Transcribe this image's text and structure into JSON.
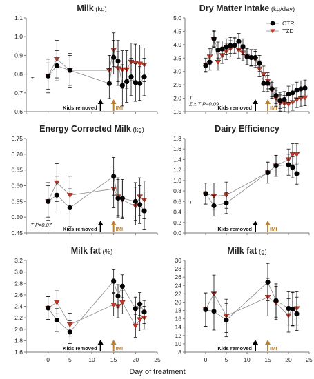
{
  "figure": {
    "xlabel": "Day of treatment",
    "colors": {
      "ctr": "#000000",
      "tzd": "#c0392b",
      "kids_arrow": "#000000",
      "imi_arrow": "#b5833a",
      "imi_text": "#b5833a"
    }
  },
  "chart_data": [
    {
      "type": "line",
      "title": "Milk",
      "unit": "(kg)",
      "xlim": [
        -5,
        25
      ],
      "ylim": [
        0.6,
        1.1
      ],
      "yticks": [
        "0.6",
        "0.7",
        "0.8",
        "0.9",
        "1.0",
        "1.1"
      ],
      "xticks": [],
      "annotations": [
        {
          "text": "T",
          "x": -4,
          "y": 0.765
        }
      ],
      "markers": {
        "kids_label": "Kids removed",
        "kids_x": 12,
        "imi_label": "IMI",
        "imi_x": 15
      },
      "series": [
        {
          "key": "ctr",
          "x": [
            0,
            2,
            5,
            14,
            15,
            16,
            17,
            18,
            19,
            20,
            21,
            22
          ],
          "y": [
            0.79,
            0.845,
            0.82,
            0.75,
            0.89,
            0.87,
            0.74,
            0.76,
            0.785,
            0.755,
            0.75,
            0.785
          ],
          "err": [
            0.09,
            0.08,
            0.09,
            0.08,
            0.09,
            0.11,
            0.11,
            0.11,
            0.1,
            0.1,
            0.09,
            0.1
          ]
        },
        {
          "key": "tzd",
          "x": [
            0,
            2,
            5,
            14,
            15,
            16,
            17,
            18,
            19,
            20,
            21,
            22
          ],
          "y": [
            0.79,
            0.88,
            0.82,
            0.82,
            0.93,
            0.83,
            0.825,
            0.825,
            0.865,
            0.86,
            0.855,
            0.85
          ],
          "err": [
            0.07,
            0.1,
            0.08,
            0.08,
            0.09,
            0.09,
            0.1,
            0.1,
            0.1,
            0.1,
            0.1,
            0.09
          ]
        }
      ]
    },
    {
      "type": "line",
      "title": "Dry Matter Intake",
      "unit": "(kg/day)",
      "xlim": [
        -5,
        25
      ],
      "ylim": [
        1.5,
        5.0
      ],
      "yticks": [
        "1.5",
        "2.0",
        "2.5",
        "3.0",
        "3.5",
        "4.0",
        "4.5",
        "5.0"
      ],
      "xticks": [],
      "annotations": [
        {
          "text": "T",
          "x": -4,
          "y": 1.95
        },
        {
          "text": "Z x T P=0.09",
          "x": -4,
          "y": 1.72
        }
      ],
      "legend": {
        "position": "top-right",
        "entries": [
          {
            "key": "ctr",
            "label": "CTR"
          },
          {
            "key": "tzd",
            "label": "TZD"
          }
        ]
      },
      "markers": {
        "kids_label": "Kids removed",
        "kids_x": 12,
        "imi_label": "IMI",
        "imi_x": 15
      },
      "series": [
        {
          "key": "ctr",
          "x": [
            0,
            1,
            2,
            3,
            4,
            5,
            6,
            7,
            8,
            9,
            10,
            11,
            12,
            13,
            14,
            15,
            16,
            17,
            18,
            19,
            20,
            21,
            22,
            23,
            24
          ],
          "y": [
            3.22,
            3.35,
            4.22,
            3.8,
            3.84,
            3.92,
            3.97,
            3.98,
            4.12,
            3.92,
            3.55,
            3.52,
            3.52,
            3.3,
            2.55,
            2.55,
            2.35,
            2.1,
            1.92,
            1.95,
            2.15,
            2.2,
            2.3,
            2.35,
            2.38
          ],
          "err": [
            0.25,
            0.3,
            0.3,
            0.3,
            0.3,
            0.3,
            0.3,
            0.3,
            0.3,
            0.3,
            0.3,
            0.3,
            0.3,
            0.3,
            0.3,
            0.3,
            0.3,
            0.3,
            0.3,
            0.3,
            0.3,
            0.3,
            0.3,
            0.3,
            0.3
          ]
        },
        {
          "key": "tzd",
          "x": [
            0,
            1,
            2,
            3,
            4,
            5,
            6,
            7,
            8,
            9,
            10,
            11,
            12,
            13,
            14,
            15,
            16,
            17,
            18,
            19,
            20,
            21,
            22,
            23,
            24
          ],
          "y": [
            3.25,
            3.55,
            4.2,
            3.35,
            3.6,
            3.75,
            3.85,
            3.95,
            3.8,
            3.7,
            3.55,
            3.5,
            3.45,
            3.1,
            2.9,
            2.65,
            2.3,
            2.0,
            1.82,
            1.8,
            1.78,
            1.85,
            1.95,
            2.0,
            2.02
          ],
          "err": [
            0.25,
            0.3,
            0.3,
            0.3,
            0.3,
            0.3,
            0.3,
            0.3,
            0.3,
            0.3,
            0.3,
            0.3,
            0.3,
            0.3,
            0.3,
            0.3,
            0.3,
            0.3,
            0.3,
            0.3,
            0.3,
            0.3,
            0.3,
            0.3,
            0.3
          ]
        }
      ]
    },
    {
      "type": "line",
      "title": "Energy Corrected Milk",
      "unit": "(kg)",
      "xlim": [
        -5,
        25
      ],
      "ylim": [
        0.45,
        0.75
      ],
      "yticks": [
        "0.45",
        "0.50",
        "0.55",
        "0.60",
        "0.65",
        "0.70",
        "0.75"
      ],
      "xticks": [],
      "annotations": [
        {
          "text": "T P=0.07",
          "x": -4,
          "y": 0.47
        }
      ],
      "markers": {
        "kids_label": "Kids removed",
        "kids_x": 12,
        "imi_label": "IMI",
        "imi_x": 15
      },
      "series": [
        {
          "key": "ctr",
          "x": [
            0,
            2,
            5,
            15,
            16,
            17,
            20,
            21,
            22
          ],
          "y": [
            0.55,
            0.57,
            0.53,
            0.63,
            0.56,
            0.56,
            0.55,
            0.54,
            0.52
          ],
          "err": [
            0.06,
            0.06,
            0.06,
            0.06,
            0.06,
            0.06,
            0.06,
            0.06,
            0.06
          ]
        },
        {
          "key": "tzd",
          "x": [
            0,
            2,
            5,
            15,
            16,
            17,
            20,
            21,
            22
          ],
          "y": [
            0.55,
            0.61,
            0.57,
            0.59,
            0.565,
            0.555,
            0.535,
            0.565,
            0.555
          ],
          "err": [
            0.05,
            0.06,
            0.06,
            0.06,
            0.06,
            0.06,
            0.06,
            0.06,
            0.06
          ]
        }
      ]
    },
    {
      "type": "line",
      "title": "Dairy Efficiency",
      "unit": "",
      "xlim": [
        -5,
        25
      ],
      "ylim": [
        0.0,
        1.8
      ],
      "yticks": [
        "0.0",
        "0.2",
        "0.4",
        "0.6",
        "0.8",
        "1.0",
        "1.2",
        "1.4",
        "1.6",
        "1.8"
      ],
      "xticks": [],
      "annotations": [
        {
          "text": "T",
          "x": -4,
          "y": 0.55
        }
      ],
      "markers": {
        "kids_label": "Kids removed",
        "kids_x": 12,
        "imi_label": "IMI",
        "imi_x": 15
      },
      "series": [
        {
          "key": "ctr",
          "x": [
            0,
            2,
            5,
            15,
            17,
            20,
            21,
            22
          ],
          "y": [
            0.75,
            0.52,
            0.57,
            1.15,
            1.28,
            1.3,
            1.25,
            1.13
          ],
          "err": [
            0.2,
            0.2,
            0.2,
            0.2,
            0.2,
            0.2,
            0.2,
            0.2
          ]
        },
        {
          "key": "tzd",
          "x": [
            0,
            2,
            5,
            15,
            17,
            20,
            21,
            22
          ],
          "y": [
            0.75,
            0.7,
            0.72,
            1.15,
            1.28,
            1.4,
            1.5,
            1.5
          ],
          "err": [
            0.2,
            0.25,
            0.25,
            0.2,
            0.2,
            0.2,
            0.2,
            0.2
          ]
        }
      ]
    },
    {
      "type": "line",
      "title": "Milk fat",
      "unit": "(%)",
      "xlim": [
        -5,
        25
      ],
      "ylim": [
        1.6,
        3.2
      ],
      "yticks": [
        "1.6",
        "1.8",
        "2.0",
        "2.2",
        "2.4",
        "2.6",
        "2.8",
        "3.0",
        "3.2"
      ],
      "xticks": [
        "0",
        "5",
        "10",
        "15",
        "20",
        "25"
      ],
      "annotations": [],
      "markers": {
        "kids_label": "Kids removed",
        "kids_x": 12,
        "imi_label": "IMI",
        "imi_x": 15
      },
      "series": [
        {
          "key": "ctr",
          "x": [
            0,
            2,
            5,
            15,
            16,
            17,
            20,
            21,
            22
          ],
          "y": [
            2.37,
            2.16,
            1.95,
            2.84,
            2.58,
            2.75,
            2.36,
            2.44,
            2.3
          ],
          "err": [
            0.2,
            0.2,
            0.2,
            0.2,
            0.2,
            0.2,
            0.2,
            0.2,
            0.2
          ]
        },
        {
          "key": "tzd",
          "x": [
            0,
            2,
            5,
            15,
            16,
            17,
            20,
            21,
            22
          ],
          "y": [
            2.37,
            2.47,
            2.08,
            2.43,
            2.4,
            2.47,
            2.06,
            2.17,
            2.2
          ],
          "err": [
            0.2,
            0.2,
            0.2,
            0.2,
            0.2,
            0.2,
            0.2,
            0.2,
            0.2
          ]
        }
      ]
    },
    {
      "type": "line",
      "title": "Milk fat",
      "unit": "(g)",
      "xlim": [
        -5,
        25
      ],
      "ylim": [
        8,
        30
      ],
      "yticks": [
        "8",
        "10",
        "12",
        "14",
        "16",
        "18",
        "20",
        "22",
        "24",
        "26",
        "28",
        "30"
      ],
      "xticks": [
        "0",
        "5",
        "10",
        "15",
        "20",
        "25"
      ],
      "annotations": [],
      "markers": {
        "kids_label": "Kids removed",
        "kids_x": 12,
        "imi_label": "IMI",
        "imi_x": 15
      },
      "series": [
        {
          "key": "ctr",
          "x": [
            0,
            2,
            5,
            15,
            17,
            20,
            21,
            22
          ],
          "y": [
            18.2,
            17.8,
            15.7,
            24.8,
            20.4,
            18.5,
            18.3,
            17.2
          ],
          "err": [
            4,
            4.5,
            4,
            4.5,
            4,
            4,
            4,
            4
          ]
        },
        {
          "key": "tzd",
          "x": [
            0,
            2,
            5,
            15,
            17,
            20,
            21,
            22
          ],
          "y": [
            18.2,
            22.0,
            16.7,
            21.2,
            19.8,
            16.8,
            18.4,
            18.5
          ],
          "err": [
            4,
            4.5,
            4,
            4.5,
            4,
            4,
            4,
            4
          ]
        }
      ]
    }
  ]
}
